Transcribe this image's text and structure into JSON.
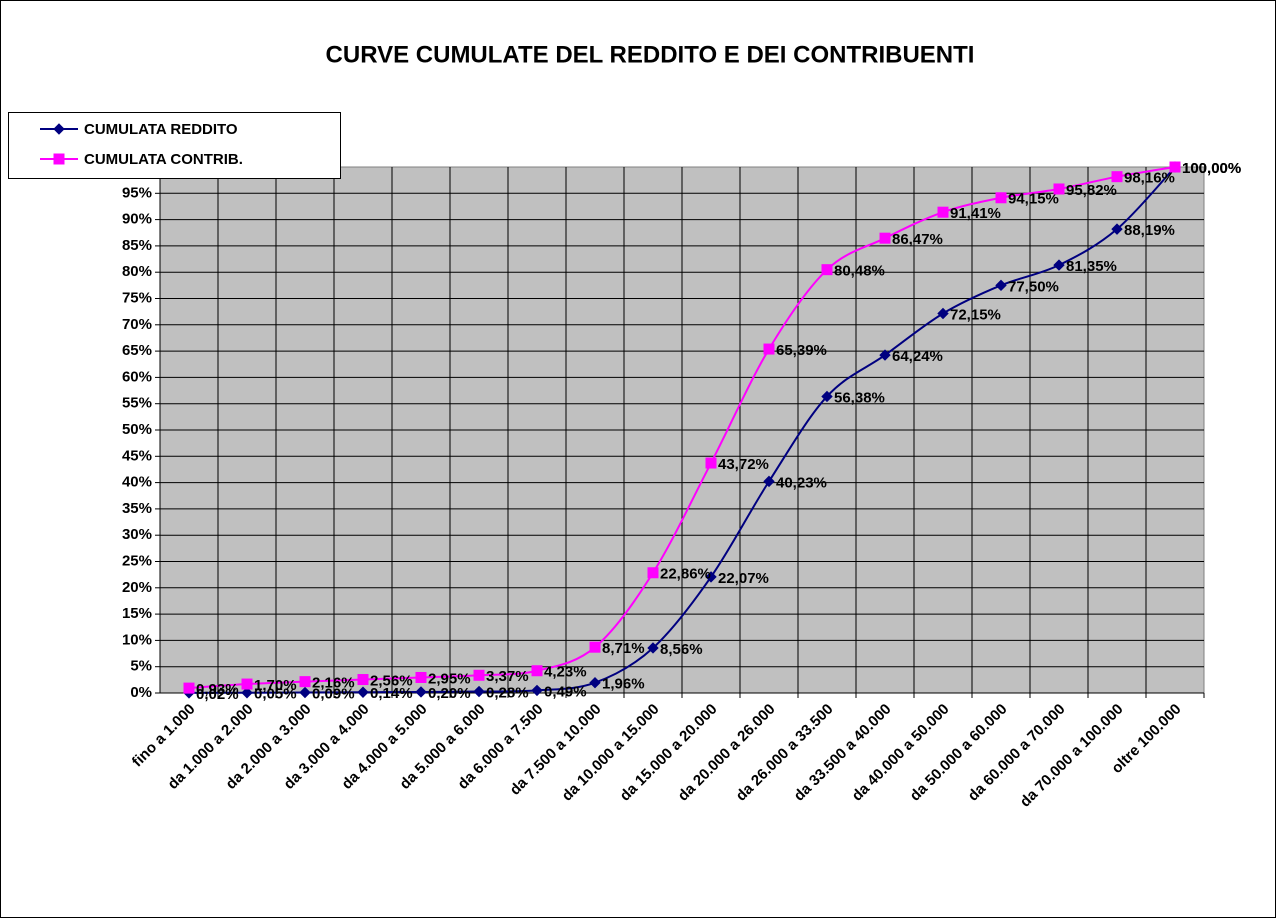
{
  "chart_data": {
    "type": "line",
    "title": "CURVE CUMULATE DEL REDDITO E DEI CONTRIBUENTI",
    "categories": [
      "fino a 1.000",
      "da 1.000 a 2.000",
      "da 2.000 a 3.000",
      "da 3.000 a 4.000",
      "da 4.000 a 5.000",
      "da 5.000 a 6.000",
      "da 6.000 a 7.500",
      "da 7.500 a 10.000",
      "da 10.000 a 15.000",
      "da 15.000 a 20.000",
      "da 20.000 a 26.000",
      "da 26.000 a 33.500",
      "da 33.500 a 40.000",
      "da 40.000 a 50.000",
      "da 50.000 a 60.000",
      "da 60.000 a 70.000",
      "da 70.000 a 100.000",
      "oltre 100.000"
    ],
    "series": [
      {
        "name": "CUMULATA REDDITO",
        "color": "#000080",
        "marker": "diamond",
        "values": [
          0.02,
          0.05,
          0.09,
          0.14,
          0.2,
          0.28,
          0.49,
          1.96,
          8.56,
          22.07,
          40.23,
          56.38,
          64.24,
          72.15,
          77.5,
          81.35,
          88.19,
          100.0
        ],
        "value_labels": [
          "0,02%",
          "0,05%",
          "0,09%",
          "0,14%",
          "0,20%",
          "0,28%",
          "0,49%",
          "1,96%",
          "8,56%",
          "22,07%",
          "40,23%",
          "56,38%",
          "64,24%",
          "72,15%",
          "77,50%",
          "81,35%",
          "88,19%",
          "100,00%"
        ]
      },
      {
        "name": "CUMULATA CONTRIB.",
        "color": "#ff00ff",
        "marker": "square",
        "values": [
          0.93,
          1.7,
          2.16,
          2.56,
          2.95,
          3.37,
          4.23,
          8.71,
          22.86,
          43.72,
          65.39,
          80.48,
          86.47,
          91.41,
          94.15,
          95.82,
          98.16,
          100.0
        ],
        "value_labels": [
          "0,93%",
          "1,70%",
          "2,16%",
          "2,56%",
          "2,95%",
          "3,37%",
          "4,23%",
          "8,71%",
          "22,86%",
          "43,72%",
          "65,39%",
          "80,48%",
          "86,47%",
          "91,41%",
          "94,15%",
          "95,82%",
          "98,16%",
          "100,00%"
        ]
      }
    ],
    "ylim": [
      0,
      100
    ],
    "yticks": [
      {
        "value": 0,
        "label": "0%"
      },
      {
        "value": 5,
        "label": "5%"
      },
      {
        "value": 10,
        "label": "10%"
      },
      {
        "value": 15,
        "label": "15%"
      },
      {
        "value": 20,
        "label": "20%"
      },
      {
        "value": 25,
        "label": "25%"
      },
      {
        "value": 30,
        "label": "30%"
      },
      {
        "value": 35,
        "label": "35%"
      },
      {
        "value": 40,
        "label": "40%"
      },
      {
        "value": 45,
        "label": "45%"
      },
      {
        "value": 50,
        "label": "50%"
      },
      {
        "value": 55,
        "label": "55%"
      },
      {
        "value": 60,
        "label": "60%"
      },
      {
        "value": 65,
        "label": "65%"
      },
      {
        "value": 70,
        "label": "70%"
      },
      {
        "value": 75,
        "label": "75%"
      },
      {
        "value": 80,
        "label": "80%"
      },
      {
        "value": 85,
        "label": "85%"
      },
      {
        "value": 90,
        "label": "90%"
      },
      {
        "value": 95,
        "label": "95%"
      }
    ],
    "grid": true,
    "plot_background": "#c0c0c0",
    "legend": "upper left"
  }
}
